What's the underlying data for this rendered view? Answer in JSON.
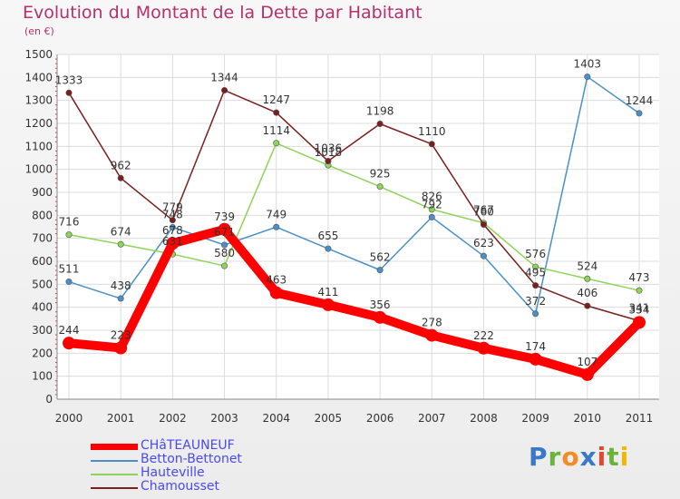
{
  "header": {
    "title": "Evolution du Montant de la Dette par Habitant",
    "unit": "(en €)"
  },
  "logo": {
    "text": "Proxiti",
    "letters": [
      {
        "ch": "P",
        "color": "#3a78c8"
      },
      {
        "ch": "r",
        "color": "#6cb33e"
      },
      {
        "ch": "o",
        "color": "#f28c28"
      },
      {
        "ch": "x",
        "color": "#3a78c8"
      },
      {
        "ch": "i",
        "color": "#e8442c"
      },
      {
        "ch": "t",
        "color": "#6cb33e"
      },
      {
        "ch": "i",
        "color": "#f2b705"
      }
    ]
  },
  "chart_data": {
    "type": "line",
    "title": "Evolution du Montant de la Dette par Habitant",
    "subtitle": "(en €)",
    "x": [
      "2000",
      "2001",
      "2002",
      "2003",
      "2004",
      "2005",
      "2006",
      "2007",
      "2008",
      "2009",
      "2010",
      "2011"
    ],
    "ylim": [
      0,
      1500
    ],
    "yticks": [
      0,
      100,
      200,
      300,
      400,
      500,
      600,
      700,
      800,
      900,
      1000,
      1100,
      1200,
      1300,
      1400,
      1500
    ],
    "grid": true,
    "legend_position": "bottom-left",
    "series": [
      {
        "name": "CHâTEAUNEUF",
        "color": "#ff0000",
        "values": [
          244,
          223,
          678,
          739,
          463,
          411,
          356,
          278,
          222,
          174,
          107,
          334
        ],
        "labels": [
          "244",
          "223",
          "678",
          "739",
          "463",
          "411",
          "356",
          "278",
          "222",
          "174",
          "107",
          "334"
        ]
      },
      {
        "name": "Betton-Bettonet",
        "color": "#4a90c8",
        "values": [
          511,
          438,
          748,
          671,
          749,
          655,
          562,
          792,
          623,
          372,
          1403,
          1244
        ],
        "labels": [
          "511",
          "438",
          "748",
          "671",
          "749",
          "655",
          "562",
          "792",
          "623",
          "372",
          "1403",
          "1244"
        ]
      },
      {
        "name": "Hauteville",
        "color": "#8fd45a",
        "values": [
          716,
          674,
          631,
          580,
          1114,
          1018,
          925,
          826,
          767,
          576,
          524,
          473
        ],
        "labels": [
          "716",
          "674",
          "631",
          "580",
          "1114",
          "1018",
          "925",
          "826",
          "767",
          "576",
          "524",
          "473"
        ]
      },
      {
        "name": "Chamousset",
        "color": "#7a1e1e",
        "values": [
          1333,
          962,
          779,
          1344,
          1247,
          1036,
          1198,
          1110,
          760,
          495,
          406,
          341
        ],
        "labels": [
          "1333",
          "962",
          "779",
          "1344",
          "1247",
          "1036",
          "1198",
          "1110",
          "760",
          "495",
          "406",
          "341"
        ]
      }
    ]
  }
}
